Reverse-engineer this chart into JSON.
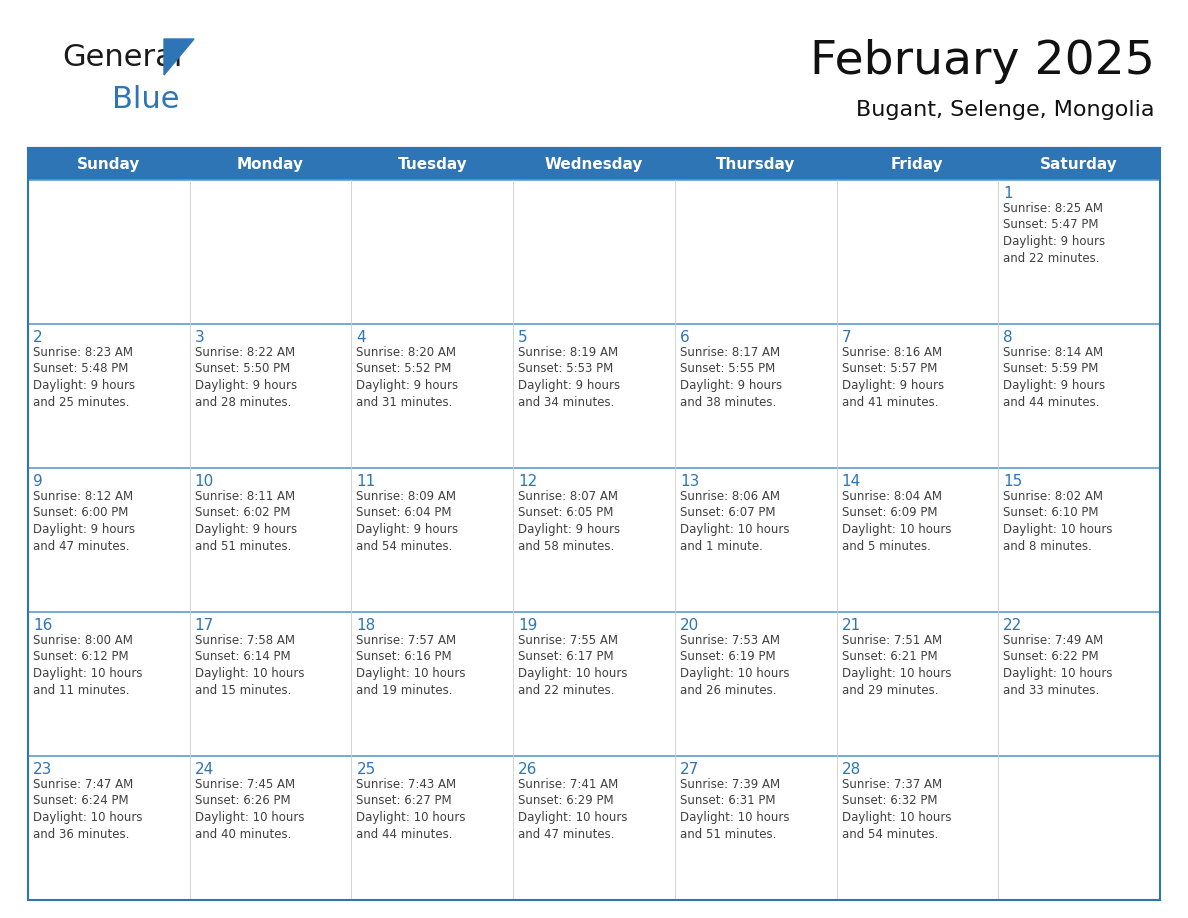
{
  "title": "February 2025",
  "subtitle": "Bugant, Selenge, Mongolia",
  "header_bg": "#2E75B6",
  "header_text_color": "#FFFFFF",
  "cell_bg_even": "#F2F7FB",
  "cell_bg_odd": "#FFFFFF",
  "border_color": "#2E75B6",
  "border_color_inner": "#5B9BD5",
  "day_number_color": "#2E75B6",
  "cell_text_color": "#404040",
  "days_of_week": [
    "Sunday",
    "Monday",
    "Tuesday",
    "Wednesday",
    "Thursday",
    "Friday",
    "Saturday"
  ],
  "weeks": [
    [
      {
        "day": "",
        "info": ""
      },
      {
        "day": "",
        "info": ""
      },
      {
        "day": "",
        "info": ""
      },
      {
        "day": "",
        "info": ""
      },
      {
        "day": "",
        "info": ""
      },
      {
        "day": "",
        "info": ""
      },
      {
        "day": "1",
        "info": "Sunrise: 8:25 AM\nSunset: 5:47 PM\nDaylight: 9 hours\nand 22 minutes."
      }
    ],
    [
      {
        "day": "2",
        "info": "Sunrise: 8:23 AM\nSunset: 5:48 PM\nDaylight: 9 hours\nand 25 minutes."
      },
      {
        "day": "3",
        "info": "Sunrise: 8:22 AM\nSunset: 5:50 PM\nDaylight: 9 hours\nand 28 minutes."
      },
      {
        "day": "4",
        "info": "Sunrise: 8:20 AM\nSunset: 5:52 PM\nDaylight: 9 hours\nand 31 minutes."
      },
      {
        "day": "5",
        "info": "Sunrise: 8:19 AM\nSunset: 5:53 PM\nDaylight: 9 hours\nand 34 minutes."
      },
      {
        "day": "6",
        "info": "Sunrise: 8:17 AM\nSunset: 5:55 PM\nDaylight: 9 hours\nand 38 minutes."
      },
      {
        "day": "7",
        "info": "Sunrise: 8:16 AM\nSunset: 5:57 PM\nDaylight: 9 hours\nand 41 minutes."
      },
      {
        "day": "8",
        "info": "Sunrise: 8:14 AM\nSunset: 5:59 PM\nDaylight: 9 hours\nand 44 minutes."
      }
    ],
    [
      {
        "day": "9",
        "info": "Sunrise: 8:12 AM\nSunset: 6:00 PM\nDaylight: 9 hours\nand 47 minutes."
      },
      {
        "day": "10",
        "info": "Sunrise: 8:11 AM\nSunset: 6:02 PM\nDaylight: 9 hours\nand 51 minutes."
      },
      {
        "day": "11",
        "info": "Sunrise: 8:09 AM\nSunset: 6:04 PM\nDaylight: 9 hours\nand 54 minutes."
      },
      {
        "day": "12",
        "info": "Sunrise: 8:07 AM\nSunset: 6:05 PM\nDaylight: 9 hours\nand 58 minutes."
      },
      {
        "day": "13",
        "info": "Sunrise: 8:06 AM\nSunset: 6:07 PM\nDaylight: 10 hours\nand 1 minute."
      },
      {
        "day": "14",
        "info": "Sunrise: 8:04 AM\nSunset: 6:09 PM\nDaylight: 10 hours\nand 5 minutes."
      },
      {
        "day": "15",
        "info": "Sunrise: 8:02 AM\nSunset: 6:10 PM\nDaylight: 10 hours\nand 8 minutes."
      }
    ],
    [
      {
        "day": "16",
        "info": "Sunrise: 8:00 AM\nSunset: 6:12 PM\nDaylight: 10 hours\nand 11 minutes."
      },
      {
        "day": "17",
        "info": "Sunrise: 7:58 AM\nSunset: 6:14 PM\nDaylight: 10 hours\nand 15 minutes."
      },
      {
        "day": "18",
        "info": "Sunrise: 7:57 AM\nSunset: 6:16 PM\nDaylight: 10 hours\nand 19 minutes."
      },
      {
        "day": "19",
        "info": "Sunrise: 7:55 AM\nSunset: 6:17 PM\nDaylight: 10 hours\nand 22 minutes."
      },
      {
        "day": "20",
        "info": "Sunrise: 7:53 AM\nSunset: 6:19 PM\nDaylight: 10 hours\nand 26 minutes."
      },
      {
        "day": "21",
        "info": "Sunrise: 7:51 AM\nSunset: 6:21 PM\nDaylight: 10 hours\nand 29 minutes."
      },
      {
        "day": "22",
        "info": "Sunrise: 7:49 AM\nSunset: 6:22 PM\nDaylight: 10 hours\nand 33 minutes."
      }
    ],
    [
      {
        "day": "23",
        "info": "Sunrise: 7:47 AM\nSunset: 6:24 PM\nDaylight: 10 hours\nand 36 minutes."
      },
      {
        "day": "24",
        "info": "Sunrise: 7:45 AM\nSunset: 6:26 PM\nDaylight: 10 hours\nand 40 minutes."
      },
      {
        "day": "25",
        "info": "Sunrise: 7:43 AM\nSunset: 6:27 PM\nDaylight: 10 hours\nand 44 minutes."
      },
      {
        "day": "26",
        "info": "Sunrise: 7:41 AM\nSunset: 6:29 PM\nDaylight: 10 hours\nand 47 minutes."
      },
      {
        "day": "27",
        "info": "Sunrise: 7:39 AM\nSunset: 6:31 PM\nDaylight: 10 hours\nand 51 minutes."
      },
      {
        "day": "28",
        "info": "Sunrise: 7:37 AM\nSunset: 6:32 PM\nDaylight: 10 hours\nand 54 minutes."
      },
      {
        "day": "",
        "info": ""
      }
    ]
  ],
  "logo_color_general": "#1a1a1a",
  "logo_color_blue": "#2E75B6",
  "title_fontsize": 34,
  "subtitle_fontsize": 16,
  "header_fontsize": 11,
  "day_number_fontsize": 11,
  "cell_text_fontsize": 8.5
}
